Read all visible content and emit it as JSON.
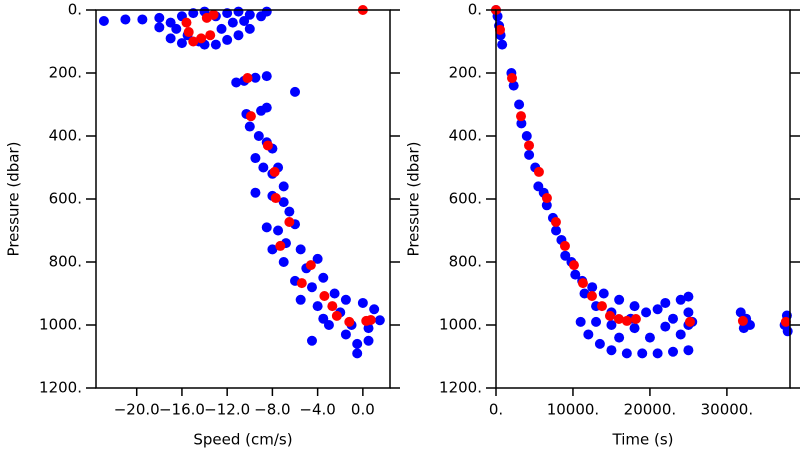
{
  "chart_data": [
    {
      "type": "scatter",
      "x_label": "Speed (cm/s)",
      "y_label": "Pressure (dbar)",
      "xlim": [
        -23.6,
        2.4
      ],
      "ylim": [
        0,
        1200
      ],
      "y_reversed": true,
      "grid": false,
      "xticks": [
        {
          "value": -20,
          "label": "−20.0"
        },
        {
          "value": -16,
          "label": "−16.0"
        },
        {
          "value": -12,
          "label": "−12.0"
        },
        {
          "value": -8,
          "label": "−8.0"
        },
        {
          "value": -4,
          "label": "−4.0"
        },
        {
          "value": 0,
          "label": "0.0"
        }
      ],
      "yticks": [
        {
          "value": 0,
          "label": "0."
        },
        {
          "value": 200,
          "label": "200."
        },
        {
          "value": 400,
          "label": "400."
        },
        {
          "value": 600,
          "label": "600."
        },
        {
          "value": 800,
          "label": "800."
        },
        {
          "value": 1000,
          "label": "1000."
        },
        {
          "value": 1200,
          "label": "1200."
        }
      ],
      "series": [
        {
          "color": "#0000ff",
          "x": [
            -22.9,
            -21,
            -19.5,
            -18,
            -17,
            -16,
            -15,
            -14,
            -13,
            -12,
            -11,
            -10,
            -9,
            -8.5,
            -16.5,
            -15.5,
            -14.5,
            -13,
            -12,
            -11,
            -10,
            -17,
            -16,
            -14,
            -12.5,
            -11.5,
            -10.5,
            -18,
            -11.2,
            -10.5,
            -9.5,
            -8.5,
            -6,
            -10.3,
            -9,
            -8.5,
            -10,
            -9.2,
            -8.5,
            -8,
            -9.5,
            -8.8,
            -8,
            -7.5,
            -9.5,
            -8,
            -7,
            -7,
            -6.5,
            -8.5,
            -7.5,
            -6,
            -6.8,
            -5.5,
            -8,
            -7,
            -5,
            -4,
            -6,
            -4.5,
            -3.5,
            -5.5,
            -4,
            -2.5,
            -1.5,
            0,
            1,
            -3,
            -1.5,
            -0.5,
            0.5,
            -0.5,
            -4.5,
            1.5,
            -2,
            0.5,
            -3.5,
            -1
          ],
          "y": [
            35,
            30,
            30,
            25,
            40,
            20,
            10,
            5,
            20,
            10,
            5,
            15,
            20,
            5,
            60,
            80,
            100,
            110,
            95,
            80,
            60,
            90,
            105,
            110,
            60,
            40,
            35,
            55,
            230,
            225,
            215,
            210,
            260,
            330,
            320,
            310,
            370,
            400,
            420,
            440,
            470,
            500,
            520,
            500,
            580,
            590,
            560,
            610,
            640,
            690,
            700,
            680,
            740,
            760,
            760,
            800,
            820,
            790,
            860,
            880,
            850,
            920,
            940,
            900,
            920,
            930,
            950,
            1000,
            1030,
            1060,
            1050,
            1090,
            1050,
            985,
            960,
            1010,
            980,
            1000
          ]
        },
        {
          "color": "#ff0000",
          "x": [
            0,
            -13.2,
            -13.8,
            -15.6,
            -15.4,
            -14.3,
            -13.5,
            -15,
            -10.2,
            -9.9,
            -8.4,
            -7.8,
            -7.7,
            -6.5,
            -7.3,
            -4.6,
            -5.4,
            -3.4,
            -2.7,
            -2.3,
            -1.2,
            0.3,
            0.7
          ],
          "y": [
            0,
            15,
            25,
            40,
            70,
            90,
            80,
            100,
            216,
            337,
            430,
            514,
            597,
            673,
            749,
            810,
            867,
            908,
            940,
            971,
            990,
            987,
            984
          ]
        }
      ]
    },
    {
      "type": "scatter",
      "x_label": "Time (s)",
      "y_label": "Pressure (dbar)",
      "xlim": [
        0,
        38200
      ],
      "ylim": [
        0,
        1200
      ],
      "y_reversed": true,
      "grid": false,
      "xticks": [
        {
          "value": 0,
          "label": "0."
        },
        {
          "value": 10000,
          "label": "10000."
        },
        {
          "value": 20000,
          "label": "20000."
        },
        {
          "value": 30000,
          "label": "30000."
        }
      ],
      "yticks": [
        {
          "value": 0,
          "label": "0."
        },
        {
          "value": 200,
          "label": "200."
        },
        {
          "value": 400,
          "label": "400."
        },
        {
          "value": 600,
          "label": "600."
        },
        {
          "value": 800,
          "label": "800."
        },
        {
          "value": 1000,
          "label": "1000."
        },
        {
          "value": 1200,
          "label": "1200."
        }
      ],
      "series": [
        {
          "color": "#0000ff",
          "x": [
            0,
            200,
            400,
            600,
            800,
            2000,
            2300,
            3000,
            3300,
            4000,
            4300,
            5100,
            5500,
            6200,
            6600,
            7400,
            7800,
            8500,
            9000,
            9800,
            10300,
            11200,
            11500,
            12500,
            13000,
            14000,
            15000,
            16000,
            17500,
            18000,
            19500,
            21000,
            23000,
            25000,
            11000,
            12000,
            13500,
            15000,
            17000,
            19000,
            21000,
            23000,
            25000,
            16000,
            20000,
            24000,
            18000,
            22000,
            25000,
            25500,
            31800,
            32200,
            32500,
            33000,
            37500,
            37800,
            37900,
            15000,
            13000,
            22000,
            24000,
            25000
          ],
          "y": [
            0,
            20,
            50,
            80,
            110,
            200,
            240,
            300,
            360,
            400,
            460,
            500,
            560,
            580,
            620,
            660,
            700,
            730,
            780,
            800,
            840,
            860,
            900,
            880,
            940,
            900,
            960,
            920,
            980,
            940,
            960,
            950,
            980,
            960,
            990,
            1030,
            1060,
            1080,
            1090,
            1090,
            1090,
            1085,
            1080,
            1040,
            1040,
            1030,
            1010,
            1005,
            1000,
            990,
            960,
            1010,
            980,
            1000,
            1000,
            970,
            1020,
            1000,
            990,
            930,
            920,
            910
          ]
        },
        {
          "color": "#ff0000",
          "x": [
            0,
            520,
            2080,
            3250,
            4290,
            5580,
            6620,
            7790,
            8960,
            10130,
            11300,
            12470,
            13770,
            14810,
            15970,
            17010,
            18180,
            25200,
            32080,
            37660
          ],
          "y": [
            0,
            63,
            216,
            337,
            430,
            514,
            597,
            673,
            749,
            810,
            867,
            908,
            940,
            971,
            981,
            987,
            981,
            990,
            987,
            990
          ]
        }
      ]
    }
  ]
}
